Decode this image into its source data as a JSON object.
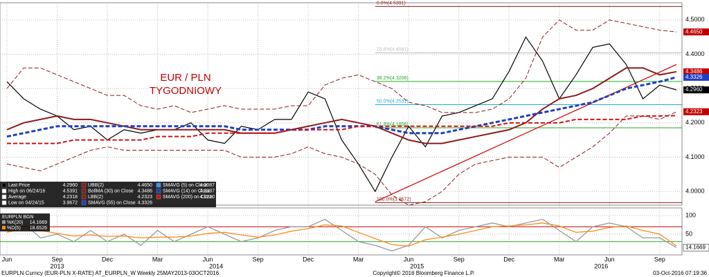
{
  "chart_data": {
    "type": "line",
    "title": "EUR / PLN",
    "subtitle": "TYGODNIOWY",
    "x": [
      "2013-06",
      "2013-07",
      "2013-08",
      "2013-09",
      "2013-10",
      "2013-11",
      "2013-12",
      "2014-01",
      "2014-02",
      "2014-03",
      "2014-04",
      "2014-05",
      "2014-06",
      "2014-07",
      "2014-08",
      "2014-09",
      "2014-10",
      "2014-11",
      "2014-12",
      "2015-01",
      "2015-02",
      "2015-03",
      "2015-04",
      "2015-05",
      "2015-06",
      "2015-07",
      "2015-08",
      "2015-09",
      "2015-10",
      "2015-11",
      "2015-12",
      "2016-01",
      "2016-02",
      "2016-03",
      "2016-04",
      "2016-05",
      "2016-06",
      "2016-07",
      "2016-08",
      "2016-09",
      "2016-10"
    ],
    "xlim": [
      "2013-06",
      "2016-10"
    ],
    "xticks": [
      {
        "value": "2013-06",
        "label": "Jun"
      },
      {
        "value": "2013-09",
        "label": "Sep"
      },
      {
        "value": "2013-12",
        "label": "Dec"
      },
      {
        "value": "2014-03",
        "label": "Mar"
      },
      {
        "value": "2014-06",
        "label": "Jun"
      },
      {
        "value": "2014-09",
        "label": "Sep"
      },
      {
        "value": "2014-12",
        "label": "Dec"
      },
      {
        "value": "2015-03",
        "label": "Mar"
      },
      {
        "value": "2015-06",
        "label": "Jun"
      },
      {
        "value": "2015-09",
        "label": "Sep"
      },
      {
        "value": "2015-12",
        "label": "Dec"
      },
      {
        "value": "2016-03",
        "label": "Mar"
      },
      {
        "value": "2016-06",
        "label": "Jun"
      },
      {
        "value": "2016-09",
        "label": "Sep"
      }
    ],
    "years": [
      "2013",
      "2014",
      "2015",
      "2016"
    ],
    "ylim": [
      3.96,
      4.55
    ],
    "yticks": [
      {
        "value": 4.0,
        "label": "4.0000"
      },
      {
        "value": 4.1,
        "label": "4.1000"
      },
      {
        "value": 4.2,
        "label": "4.2000"
      },
      {
        "value": 4.3,
        "label": "4.3000"
      },
      {
        "value": 4.4,
        "label": "4.4000"
      },
      {
        "value": 4.5,
        "label": "4.5000"
      }
    ],
    "grid": true,
    "series": [
      {
        "name": "Last Price",
        "color": "#000000",
        "dash": false,
        "width": 1.2,
        "values": [
          4.32,
          4.27,
          4.24,
          4.22,
          4.18,
          4.19,
          4.15,
          4.18,
          4.17,
          4.18,
          4.18,
          4.2,
          4.15,
          4.14,
          4.19,
          4.18,
          4.21,
          4.21,
          4.29,
          4.27,
          4.15,
          4.08,
          4.0,
          4.1,
          4.19,
          4.13,
          4.22,
          4.23,
          4.25,
          4.27,
          4.35,
          4.45,
          4.38,
          4.27,
          4.34,
          4.42,
          4.43,
          4.37,
          4.27,
          4.31,
          4.296
        ]
      },
      {
        "name": "UBB(2)",
        "color": "#8b1a1a",
        "dash": true,
        "width": 1,
        "values": [
          4.3,
          4.36,
          4.36,
          4.34,
          4.32,
          4.3,
          4.28,
          4.28,
          4.25,
          4.24,
          4.25,
          4.23,
          4.24,
          4.25,
          4.24,
          4.24,
          4.24,
          4.25,
          4.25,
          4.31,
          4.33,
          4.34,
          4.32,
          4.3,
          4.26,
          4.25,
          4.23,
          4.23,
          4.23,
          4.24,
          4.27,
          4.33,
          4.45,
          4.5,
          4.47,
          4.47,
          4.5,
          4.49,
          4.48,
          4.47,
          4.465
        ]
      },
      {
        "name": "LBB(2)",
        "color": "#8b1a1a",
        "dash": true,
        "width": 1,
        "values": [
          4.08,
          4.07,
          4.06,
          4.08,
          4.1,
          4.12,
          4.13,
          4.12,
          4.12,
          4.12,
          4.12,
          4.12,
          4.12,
          4.12,
          4.1,
          4.1,
          4.1,
          4.11,
          4.13,
          4.11,
          4.1,
          4.08,
          4.05,
          3.99,
          3.96,
          3.97,
          4.0,
          4.05,
          4.08,
          4.09,
          4.1,
          4.1,
          4.1,
          4.07,
          4.1,
          4.13,
          4.17,
          4.22,
          4.22,
          4.21,
          4.232
        ]
      },
      {
        "name": "BollMA (30) on Close",
        "color": "#8b1a1a",
        "dash": false,
        "width": 2,
        "values": [
          4.18,
          4.2,
          4.21,
          4.22,
          4.21,
          4.21,
          4.2,
          4.19,
          4.18,
          4.18,
          4.18,
          4.18,
          4.18,
          4.18,
          4.17,
          4.17,
          4.17,
          4.18,
          4.19,
          4.2,
          4.21,
          4.2,
          4.19,
          4.17,
          4.15,
          4.14,
          4.14,
          4.15,
          4.16,
          4.17,
          4.18,
          4.2,
          4.24,
          4.27,
          4.28,
          4.3,
          4.33,
          4.36,
          4.36,
          4.34,
          4.349
        ]
      },
      {
        "name": "SMAVG (55) on Close",
        "color": "#1f3fbf",
        "dash": true,
        "width": 3,
        "values": [
          4.16,
          4.17,
          4.18,
          4.19,
          4.19,
          4.19,
          4.19,
          4.19,
          4.19,
          4.19,
          4.19,
          4.19,
          4.19,
          4.19,
          4.18,
          4.18,
          4.18,
          4.18,
          4.18,
          4.19,
          4.19,
          4.19,
          4.19,
          4.18,
          4.17,
          4.17,
          4.17,
          4.18,
          4.19,
          4.2,
          4.21,
          4.22,
          4.23,
          4.24,
          4.25,
          4.26,
          4.28,
          4.3,
          4.31,
          4.32,
          4.333
        ]
      },
      {
        "name": "SMAVG (200) on Close",
        "color": "#d01010",
        "dash": true,
        "width": 2,
        "values": [
          4.14,
          4.14,
          4.14,
          4.14,
          4.15,
          4.15,
          4.15,
          4.15,
          4.15,
          4.16,
          4.16,
          4.16,
          4.17,
          4.17,
          4.17,
          4.17,
          4.17,
          4.18,
          4.18,
          4.18,
          4.18,
          4.19,
          4.19,
          4.19,
          4.19,
          4.19,
          4.19,
          4.19,
          4.19,
          4.19,
          4.2,
          4.2,
          4.2,
          4.2,
          4.21,
          4.21,
          4.21,
          4.21,
          4.22,
          4.22,
          4.221
        ]
      }
    ],
    "fib_start": "2015-04",
    "fib_levels": [
      {
        "label": "0.0%(4.5391)",
        "value": 4.5391,
        "color": "#8b1a1a"
      },
      {
        "label": "23.6%(4.4041)",
        "value": 4.4041,
        "color": "#bbbbbb"
      },
      {
        "label": "38.2%(4.3206)",
        "value": 4.3206,
        "color": "#22aa22"
      },
      {
        "label": "50.0%(4.2531)",
        "value": 4.2531,
        "color": "#22aacc"
      },
      {
        "label": "61.8%(4.1856)",
        "value": 4.1856,
        "color": "#22aa22"
      },
      {
        "label": "100.0%(3.9672)",
        "value": 3.9672,
        "color": "#8b1a1a"
      }
    ],
    "trendline": {
      "x": [
        "2015-04",
        "2016-10"
      ],
      "y": [
        3.97,
        4.37
      ],
      "color": "#d01010"
    },
    "price_tags": [
      {
        "value": 4.465,
        "label": "4.4650",
        "color": "#c00000"
      },
      {
        "value": 4.3486,
        "label": "4.3486",
        "color": "#c00000"
      },
      {
        "value": 4.3326,
        "label": "4.3326",
        "color": "#1f3fbf"
      },
      {
        "value": 4.296,
        "label": "4.2960",
        "color": "#000000"
      },
      {
        "value": 4.2323,
        "label": "4.2323",
        "color": "#c00000"
      }
    ],
    "legend": [
      [
        {
          "name": "Last Price",
          "value": "4.2960",
          "color": "#000000"
        },
        {
          "name": "High on 06/24/16",
          "value": "4.5391",
          "color": "#ffffff"
        },
        {
          "name": "Average",
          "value": "4.2318",
          "color": "#ffffff"
        },
        {
          "name": "Low on 04/24/15",
          "value": "3.9672",
          "color": "#ffffff"
        }
      ],
      [
        {
          "name": "UBB(2)",
          "value": "4.4650",
          "color": "#8b1a1a"
        },
        {
          "name": "BollMA (30) on Close",
          "value": "4.3486",
          "color": "#8b1a1a"
        },
        {
          "name": "LBB(2)",
          "value": "4.2323",
          "color": "#8b1a1a"
        },
        {
          "name": "SMAVG (55) on Close",
          "value": "4.3326",
          "color": "#1f3fbf"
        }
      ],
      [
        {
          "name": "SMAVG (5) on Close",
          "value": "4.3087",
          "color": "#3399ff"
        },
        {
          "name": "SMAVG (14) on Close",
          "value": "4.3337",
          "color": "#1f3fbf"
        },
        {
          "name": "SMAVG (200) on Close",
          "value": "4.2210",
          "color": "#d01010"
        }
      ]
    ],
    "lower": {
      "legend_title": "EURPLN BGN",
      "legend": [
        {
          "name": "%K(20)",
          "value": "14.1669"
        },
        {
          "name": "%D(5)",
          "value": "18.6526"
        }
      ],
      "ylim": [
        0,
        113
      ],
      "yticks": [
        50,
        100
      ],
      "hlines": [
        {
          "value": 70,
          "color": "#c00000"
        },
        {
          "value": 30,
          "color": "#22aa22"
        }
      ],
      "tag": {
        "value": 14.1669,
        "label": "14.1669"
      },
      "series": [
        {
          "name": "%K(20)",
          "color": "#999999",
          "values": [
            60,
            80,
            40,
            50,
            30,
            60,
            30,
            50,
            20,
            60,
            30,
            50,
            70,
            50,
            30,
            40,
            60,
            70,
            70,
            90,
            60,
            30,
            20,
            5,
            20,
            70,
            40,
            60,
            70,
            80,
            70,
            80,
            90,
            60,
            30,
            70,
            80,
            70,
            40,
            40,
            14.1669
          ]
        },
        {
          "name": "%D(5)",
          "color": "#ff8c1a",
          "values": [
            55,
            65,
            60,
            52,
            45,
            48,
            44,
            45,
            40,
            42,
            42,
            45,
            52,
            55,
            48,
            42,
            48,
            58,
            65,
            75,
            72,
            55,
            38,
            22,
            18,
            35,
            42,
            50,
            60,
            70,
            72,
            75,
            80,
            72,
            55,
            58,
            68,
            72,
            60,
            50,
            18.6526
          ]
        }
      ]
    },
    "footer_left": "EURPLN Curncy (EUR-PLN X-RATE) AT_EURPLN_W  Weekly 25MAY2013-03OCT2016",
    "footer_center": "Copyright© 2016 Bloomberg Finance L.P.",
    "footer_right": "03-Oct-2016 07:19:36"
  }
}
